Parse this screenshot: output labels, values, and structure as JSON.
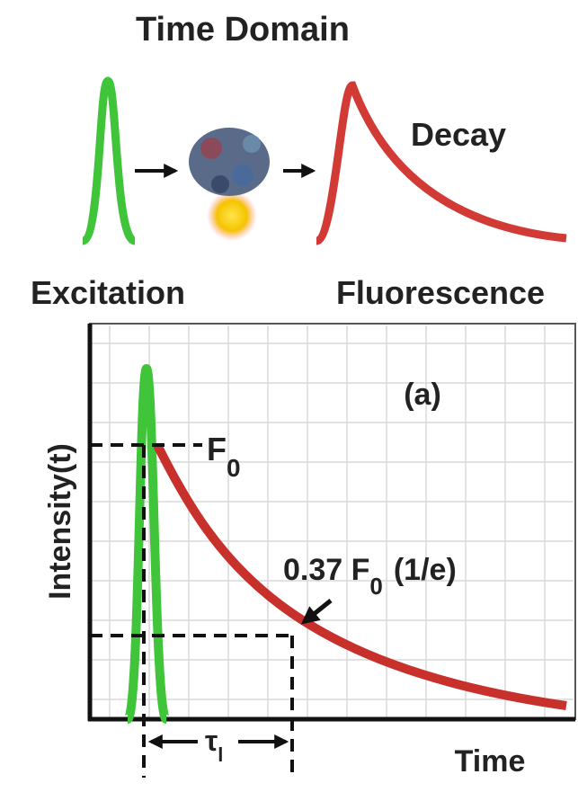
{
  "header": {
    "title": "Time Domain"
  },
  "top": {
    "decay": "Decay",
    "excitation": "Excitation",
    "fluorescence": "Fluorescence"
  },
  "plot": {
    "panel": "(a)",
    "y_label": "Intensity(t)",
    "x_label": "Time",
    "f0": {
      "text": "F",
      "sub": "0"
    },
    "level": {
      "value_text": "0.37 F",
      "sub": "0",
      "note": "(1/e)"
    },
    "tau": {
      "text": "τ",
      "sub": "l"
    }
  }
}
